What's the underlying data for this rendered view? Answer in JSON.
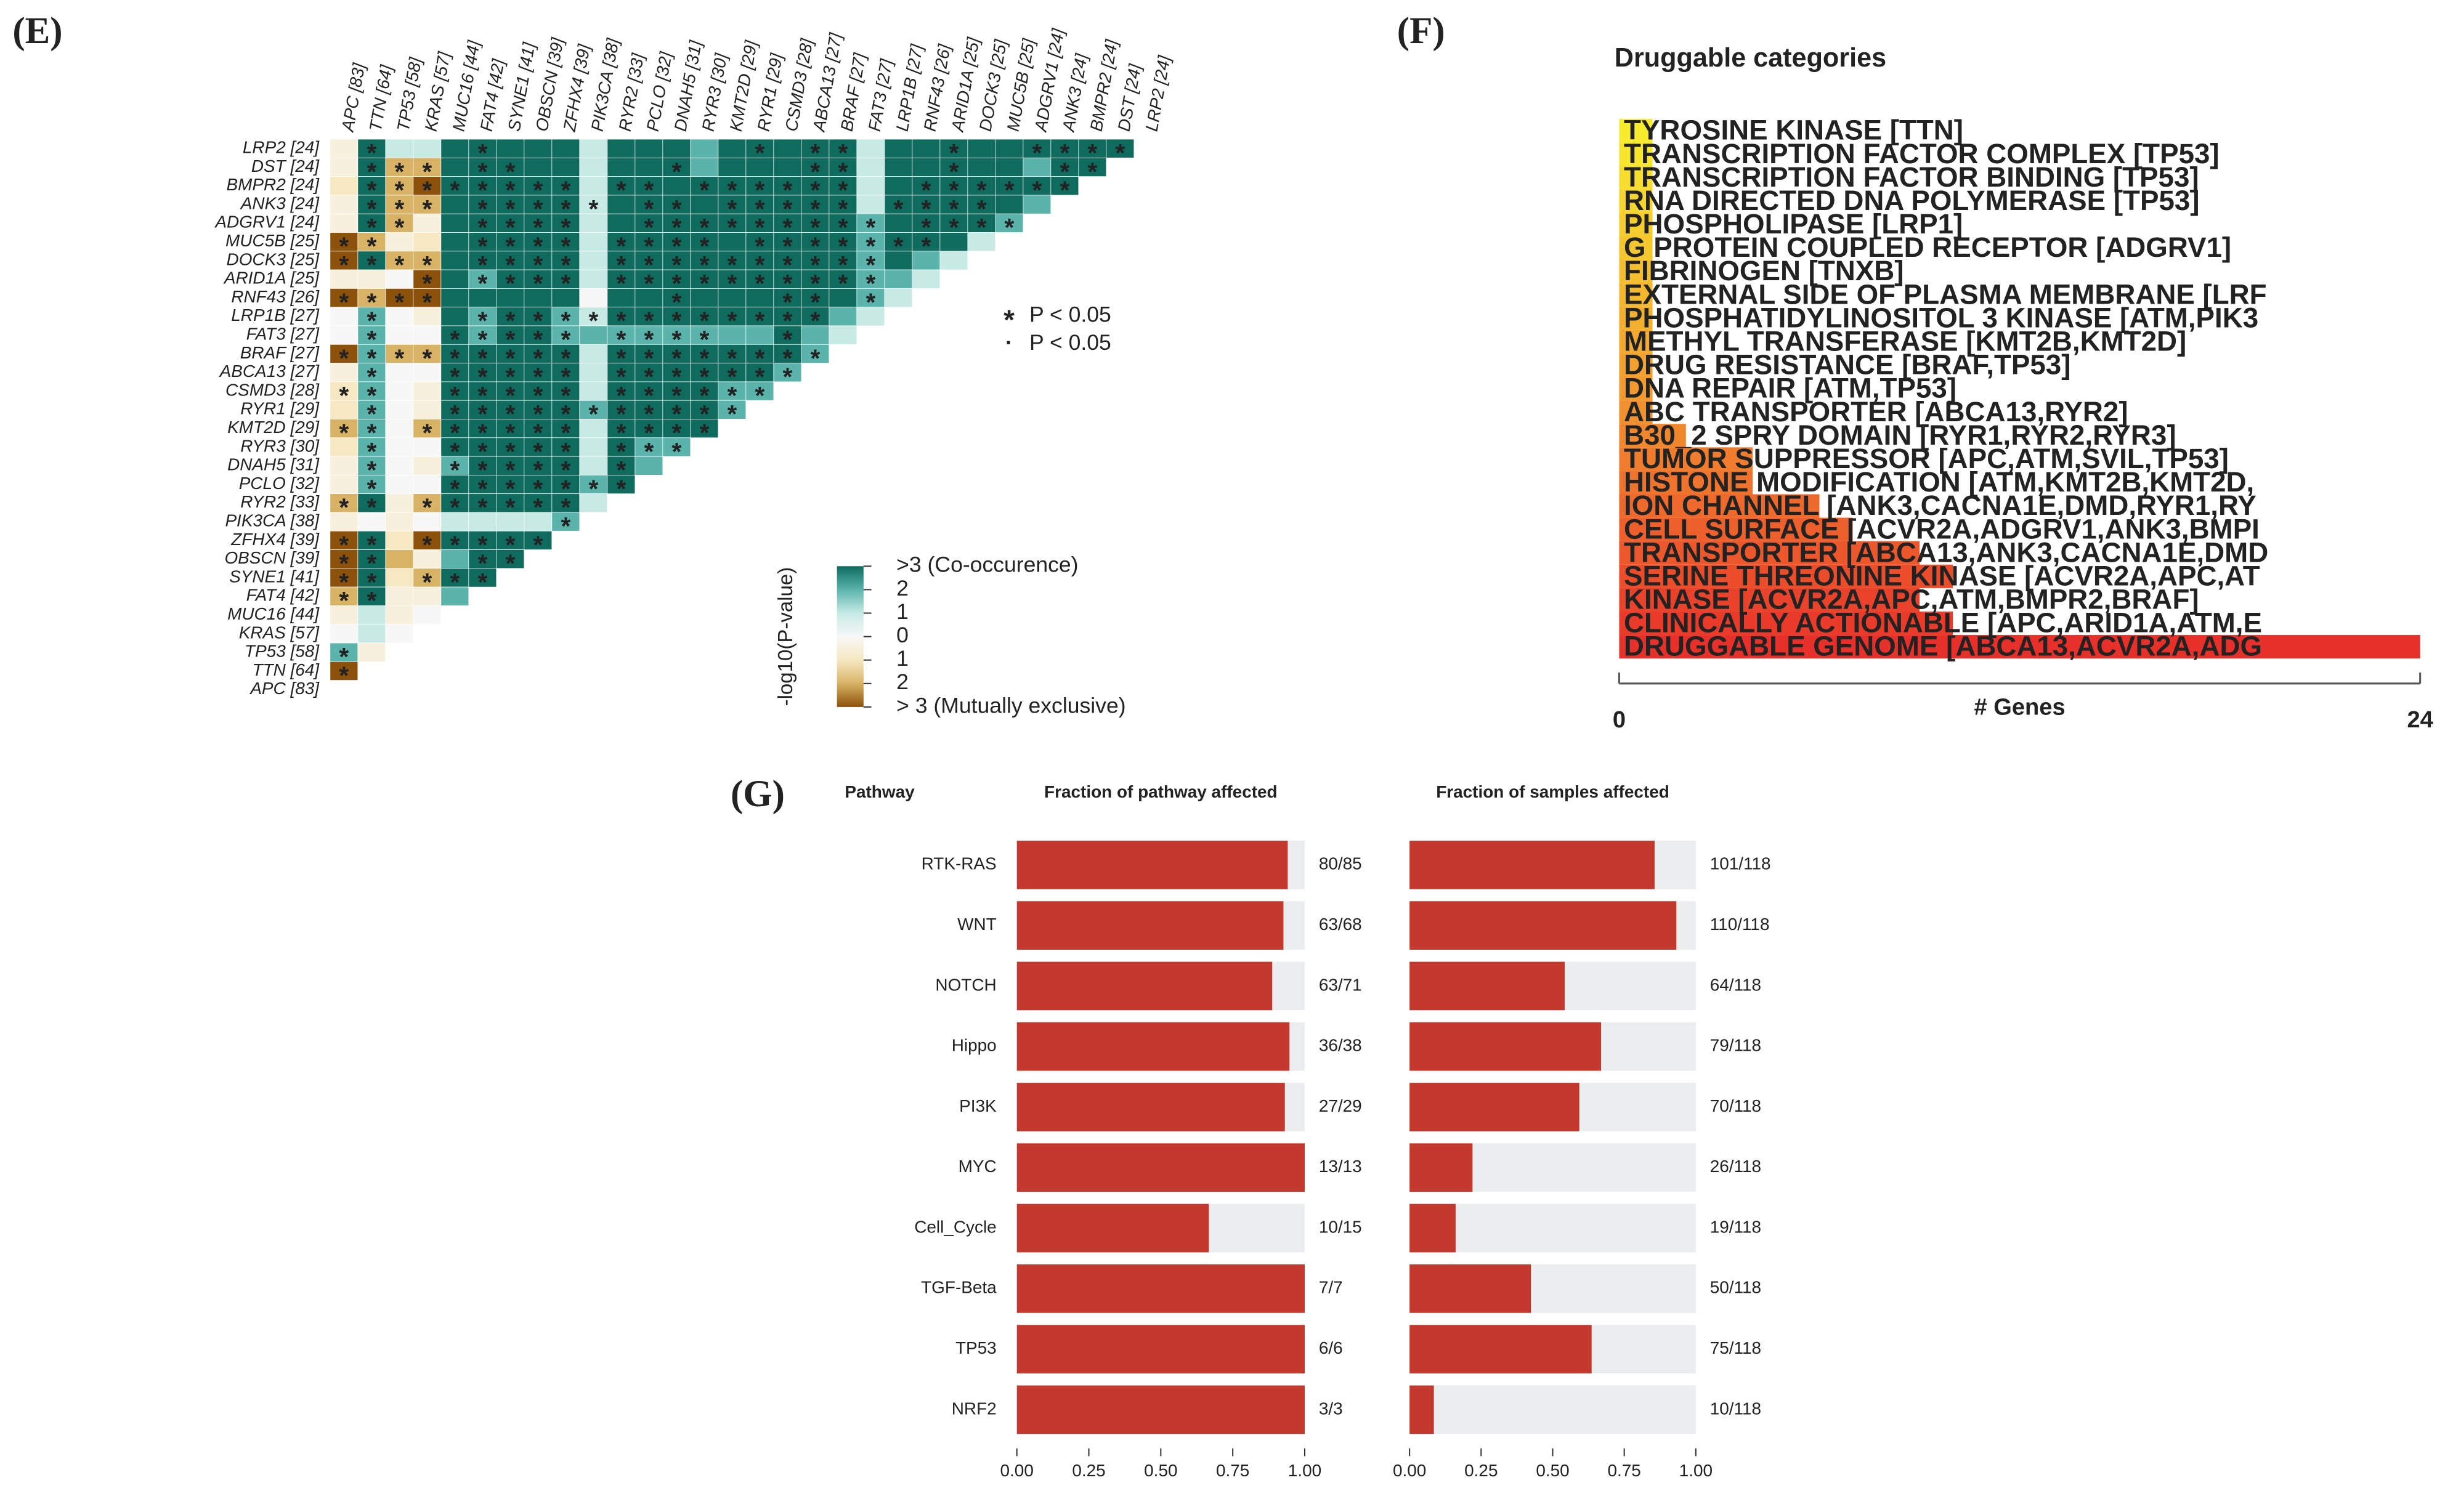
{
  "chart_data": [
    {
      "type": "heatmap",
      "panel_label": "(E)",
      "rows": [
        "LRP2 [24]",
        "DST [24]",
        "BMPR2 [24]",
        "ANK3 [24]",
        "ADGRV1 [24]",
        "MUC5B [25]",
        "DOCK3 [25]",
        "ARID1A [25]",
        "RNF43 [26]",
        "LRP1B [27]",
        "FAT3 [27]",
        "BRAF [27]",
        "ABCA13 [27]",
        "CSMD3 [28]",
        "RYR1 [29]",
        "KMT2D [29]",
        "RYR3 [30]",
        "DNAH5 [31]",
        "PCLO [32]",
        "RYR2 [33]",
        "PIK3CA [38]",
        "ZFHX4 [39]",
        "OBSCN [39]",
        "SYNE1 [41]",
        "FAT4 [42]",
        "MUC16 [44]",
        "KRAS [57]",
        "TP53 [58]",
        "TTN [64]",
        "APC [83]"
      ],
      "columns": [
        "APC [83]",
        "TTN [64]",
        "TP53 [58]",
        "KRAS [57]",
        "MUC16 [44]",
        "FAT4 [42]",
        "SYNE1 [41]",
        "OBSCN [39]",
        "ZFHX4 [39]",
        "PIK3CA [38]",
        "RYR2 [33]",
        "PCLO [32]",
        "DNAH5 [31]",
        "RYR3 [30]",
        "KMT2D [29]",
        "RYR1 [29]",
        "CSMD3 [28]",
        "ABCA13 [27]",
        "BRAF [27]",
        "FAT3 [27]",
        "LRP1B [27]",
        "RNF43 [26]",
        "ARID1A [25]",
        "DOCK3 [25]",
        "MUC5B [25]",
        "ADGRV1 [24]",
        "ANK3 [24]",
        "BMPR2 [24]",
        "DST [24]",
        "LRP2 [24]"
      ],
      "values": [
        [
          -0.5,
          3,
          1,
          1,
          3,
          3,
          3,
          3,
          3,
          1,
          3,
          3,
          3,
          2,
          3,
          3,
          3,
          3,
          3,
          1,
          3,
          3,
          3,
          3,
          3,
          3,
          3,
          3,
          3
        ],
        [
          -0.5,
          3,
          -2,
          -2,
          3,
          3,
          3,
          3,
          3,
          1,
          3,
          3,
          3,
          2,
          3,
          3,
          3,
          3,
          3,
          1,
          3,
          3,
          3,
          3,
          3,
          2,
          3,
          3
        ],
        [
          -1,
          3,
          -2,
          -3,
          3,
          3,
          3,
          3,
          3,
          1,
          3,
          3,
          3,
          3,
          3,
          3,
          3,
          3,
          3,
          1,
          3,
          3,
          3,
          3,
          3,
          3,
          3
        ],
        [
          -0.5,
          3,
          -2,
          -2,
          3,
          3,
          3,
          3,
          3,
          1,
          3,
          3,
          3,
          3,
          3,
          3,
          3,
          3,
          3,
          1,
          3,
          3,
          3,
          3,
          3,
          2
        ],
        [
          -0.5,
          3,
          -2,
          -0.5,
          3,
          3,
          3,
          3,
          3,
          1,
          3,
          3,
          3,
          3,
          3,
          3,
          3,
          3,
          3,
          2,
          3,
          3,
          3,
          3,
          2
        ],
        [
          -3,
          -2,
          -0.5,
          -1,
          3,
          3,
          3,
          3,
          3,
          1,
          3,
          3,
          3,
          3,
          3,
          3,
          3,
          3,
          3,
          2,
          3,
          3,
          3,
          1
        ],
        [
          -3,
          3,
          -2,
          -2,
          3,
          3,
          3,
          3,
          3,
          1,
          3,
          3,
          3,
          3,
          3,
          3,
          3,
          3,
          3,
          2,
          3,
          2,
          1
        ],
        [
          -0.5,
          -0.5,
          0,
          -3,
          3,
          2,
          3,
          3,
          3,
          1,
          3,
          3,
          3,
          3,
          3,
          3,
          3,
          3,
          3,
          2,
          2,
          1
        ],
        [
          -3,
          -2,
          -3,
          -3,
          3,
          3,
          3,
          3,
          3,
          0,
          3,
          3,
          3,
          3,
          3,
          3,
          3,
          3,
          3,
          2,
          1
        ],
        [
          0,
          2,
          0,
          -0.5,
          3,
          2,
          3,
          3,
          2,
          1,
          3,
          3,
          3,
          3,
          3,
          3,
          3,
          3,
          2,
          1
        ],
        [
          0,
          2,
          0,
          0,
          3,
          2,
          3,
          3,
          2,
          2,
          2,
          2,
          2,
          2,
          2,
          2,
          3,
          2,
          1
        ],
        [
          -3,
          2,
          -2,
          -2,
          3,
          3,
          3,
          3,
          3,
          1,
          3,
          3,
          3,
          3,
          3,
          3,
          3,
          2
        ],
        [
          -0.5,
          2,
          0,
          0,
          3,
          3,
          3,
          3,
          3,
          1,
          3,
          3,
          3,
          3,
          3,
          3,
          2
        ],
        [
          -1,
          2,
          0,
          -0.5,
          3,
          3,
          3,
          3,
          3,
          1,
          3,
          3,
          3,
          3,
          2,
          2
        ],
        [
          -1,
          2,
          0,
          -0.5,
          3,
          3,
          3,
          3,
          3,
          2,
          3,
          3,
          3,
          3,
          2
        ],
        [
          -2,
          2,
          0,
          -2,
          3,
          3,
          3,
          3,
          3,
          1,
          3,
          3,
          3,
          3
        ],
        [
          -1,
          2,
          0,
          0,
          3,
          3,
          3,
          3,
          3,
          1,
          3,
          2,
          2
        ],
        [
          -0.5,
          2,
          0,
          -0.5,
          2,
          3,
          3,
          3,
          3,
          1,
          3,
          2
        ],
        [
          -0.5,
          2,
          0,
          0,
          3,
          3,
          3,
          3,
          3,
          2,
          3
        ],
        [
          -2,
          3,
          -0.5,
          -2,
          3,
          3,
          3,
          3,
          3,
          1
        ],
        [
          -0.5,
          0,
          -0.5,
          0,
          1,
          1,
          1,
          1,
          2
        ],
        [
          -3,
          3,
          -1,
          -3,
          3,
          3,
          3,
          3
        ],
        [
          -3,
          3,
          -2,
          -0.5,
          2,
          3,
          3
        ],
        [
          -3,
          3,
          -1,
          -2,
          3,
          3
        ],
        [
          -2,
          3,
          -0.5,
          -0.5,
          2
        ],
        [
          -0.5,
          1,
          -0.5,
          0
        ],
        [
          0,
          1,
          0
        ],
        [
          2,
          -0.5
        ],
        [
          -3
        ],
        []
      ],
      "significant": [
        [
          1,
          5,
          15,
          17,
          18,
          22,
          25,
          26,
          27,
          28
        ],
        [
          1,
          2,
          3,
          5,
          6,
          12,
          17,
          18,
          22,
          26,
          27
        ],
        [
          1,
          2,
          3,
          4,
          5,
          6,
          7,
          8,
          10,
          11,
          13,
          14,
          15,
          16,
          17,
          18,
          21,
          22,
          23,
          24,
          25,
          26
        ],
        [
          1,
          2,
          3,
          5,
          6,
          7,
          8,
          9,
          11,
          12,
          14,
          15,
          16,
          17,
          18,
          20,
          21,
          22,
          23
        ],
        [
          1,
          2,
          5,
          6,
          7,
          8,
          11,
          12,
          13,
          14,
          15,
          16,
          17,
          18,
          19,
          21,
          22,
          23,
          24
        ],
        [
          0,
          1,
          5,
          6,
          7,
          8,
          10,
          11,
          12,
          13,
          15,
          16,
          17,
          18,
          19,
          20,
          21
        ],
        [
          0,
          1,
          2,
          3,
          5,
          6,
          7,
          8,
          10,
          11,
          12,
          13,
          14,
          15,
          16,
          17,
          18,
          19
        ],
        [
          3,
          5,
          6,
          7,
          8,
          10,
          11,
          12,
          13,
          14,
          15,
          16,
          17,
          18,
          19
        ],
        [
          0,
          1,
          2,
          3,
          12,
          16,
          17,
          19
        ],
        [
          1,
          5,
          6,
          7,
          8,
          9,
          10,
          11,
          12,
          13,
          14,
          15,
          16,
          17
        ],
        [
          1,
          4,
          5,
          6,
          7,
          8,
          10,
          11,
          12,
          13,
          16
        ],
        [
          0,
          1,
          2,
          3,
          4,
          5,
          6,
          7,
          8,
          10,
          11,
          12,
          13,
          14,
          15,
          16,
          17
        ],
        [
          1,
          4,
          5,
          6,
          7,
          8,
          10,
          11,
          12,
          13,
          14,
          15,
          16
        ],
        [
          0,
          1,
          4,
          5,
          6,
          7,
          8,
          10,
          11,
          12,
          13,
          14,
          15
        ],
        [
          1,
          4,
          5,
          6,
          7,
          8,
          9,
          10,
          11,
          12,
          13,
          14
        ],
        [
          0,
          1,
          3,
          4,
          5,
          6,
          7,
          8,
          10,
          11,
          12,
          13
        ],
        [
          1,
          4,
          5,
          6,
          7,
          8,
          10,
          11,
          12
        ],
        [
          1,
          4,
          5,
          6,
          7,
          8,
          10
        ],
        [
          1,
          4,
          5,
          6,
          7,
          8,
          9,
          10
        ],
        [
          0,
          1,
          3,
          4,
          5,
          6,
          7,
          8
        ],
        [
          8
        ],
        [
          0,
          1,
          3,
          4,
          5,
          6,
          7
        ],
        [
          0,
          1,
          5,
          6
        ],
        [
          0,
          1,
          3,
          4,
          5
        ],
        [
          0,
          1
        ],
        [],
        [],
        [
          0
        ],
        [
          0
        ],
        []
      ],
      "legend": [
        {
          "symbol": "*",
          "label": "P < 0.05"
        },
        {
          "symbol": "·",
          "label": "P < 0.05"
        }
      ],
      "colorbar": {
        "title": "-log10(P-value)",
        "lim": [
          -3,
          3
        ],
        "ticks": [
          {
            "value": 3,
            "label": ">3 (Co-occurence)"
          },
          2,
          1,
          0,
          {
            "value": -1,
            "label": "1"
          },
          {
            "value": -2,
            "label": "2"
          },
          {
            "value": -3,
            "label": "> 3 (Mutually exclusive)"
          }
        ],
        "colors": [
          "#8c510a",
          "#d8b365",
          "#f6e8c3",
          "#f7f7f7",
          "#c7eae5",
          "#5ab4ac",
          "#0f6b5e"
        ]
      }
    },
    {
      "type": "barh",
      "panel_label": "(F)",
      "title": "Druggable categories",
      "categories": [
        "TYROSINE KINASE [TTN]",
        "TRANSCRIPTION FACTOR COMPLEX [TP53]",
        "TRANSCRIPTION FACTOR BINDING [TP53]",
        "RNA DIRECTED DNA POLYMERASE [TP53]",
        "PHOSPHOLIPASE [LRP1]",
        "G PROTEIN COUPLED RECEPTOR [ADGRV1]",
        "FIBRINOGEN [TNXB]",
        "EXTERNAL SIDE OF PLASMA MEMBRANE [LRF",
        "PHOSPHATIDYLINOSITOL 3 KINASE [ATM,PIK3",
        "METHYL TRANSFERASE [KMT2B,KMT2D]",
        "DRUG RESISTANCE [BRAF,TP53]",
        "DNA REPAIR [ATM,TP53]",
        "ABC TRANSPORTER [ABCA13,RYR2]",
        "B30_2 SPRY DOMAIN [RYR1,RYR2,RYR3]",
        "TUMOR SUPPRESSOR [APC,ATM,SVIL,TP53]",
        "HISTONE MODIFICATION [ATM,KMT2B,KMT2D,",
        "ION CHANNEL [ANK3,CACNA1E,DMD,RYR1,RY",
        "CELL SURFACE [ACVR2A,ADGRV1,ANK3,BMPI",
        "TRANSPORTER [ABCA13,ANK3,CACNA1E,DMD",
        "SERINE THREONINE KINASE [ACVR2A,APC,AT",
        "KINASE [ACVR2A,APC,ATM,BMPR2,BRAF]",
        "CLINICALLY ACTIONABLE [APC,ARID1A,ATM,E",
        "DRUGGABLE GENOME [ABCA13,ACVR2A,ADG"
      ],
      "values": [
        1,
        1,
        1,
        1,
        1,
        1,
        1,
        1,
        1,
        1,
        1,
        1,
        1,
        2,
        4,
        4,
        6,
        7,
        9,
        10,
        9,
        10,
        24
      ],
      "color_range": [
        "#f7ec2e",
        "#f29a2e",
        "#e8302a"
      ],
      "xlim": [
        0,
        24
      ],
      "xticks": [
        0,
        24
      ],
      "xlabel": "# Genes"
    },
    {
      "type": "fraction_bar",
      "panel_label": "(G)",
      "header": "Pathway",
      "title": "Fraction of pathway affected",
      "categories": [
        "RTK-RAS",
        "WNT",
        "NOTCH",
        "Hippo",
        "PI3K",
        "MYC",
        "Cell_Cycle",
        "TGF-Beta",
        "TP53",
        "NRF2"
      ],
      "values": [
        0.941,
        0.926,
        0.887,
        0.947,
        0.931,
        1,
        0.667,
        1,
        1,
        1
      ],
      "value_labels": [
        "80/85",
        "63/68",
        "63/71",
        "36/38",
        "27/29",
        "13/13",
        "10/15",
        "7/7",
        "6/6",
        "3/3"
      ],
      "color": "#c4392e",
      "background": "#ebedee",
      "xlim": [
        0,
        1
      ],
      "xticks": [
        {
          "value": 0,
          "label": "0.00"
        },
        {
          "value": 0.25,
          "label": "0.25"
        },
        {
          "value": 0.5,
          "label": "0.50"
        },
        {
          "value": 0.75,
          "label": "0.75"
        },
        {
          "value": 1,
          "label": "1.00"
        }
      ]
    },
    {
      "type": "fraction_bar",
      "title": "Fraction of samples affected",
      "values": [
        0.856,
        0.932,
        0.542,
        0.669,
        0.593,
        0.22,
        0.161,
        0.424,
        0.636,
        0.085
      ],
      "value_labels": [
        "101/118",
        "110/118",
        "64/118",
        "79/118",
        "70/118",
        "26/118",
        "19/118",
        "50/118",
        "75/118",
        "10/118"
      ],
      "color": "#c4392e",
      "background": "#ebedee",
      "xlim": [
        0,
        1
      ],
      "xticks": [
        {
          "value": 0,
          "label": "0.00"
        },
        {
          "value": 0.25,
          "label": "0.25"
        },
        {
          "value": 0.5,
          "label": "0.50"
        },
        {
          "value": 0.75,
          "label": "0.75"
        },
        {
          "value": 1,
          "label": "1.00"
        }
      ]
    }
  ]
}
